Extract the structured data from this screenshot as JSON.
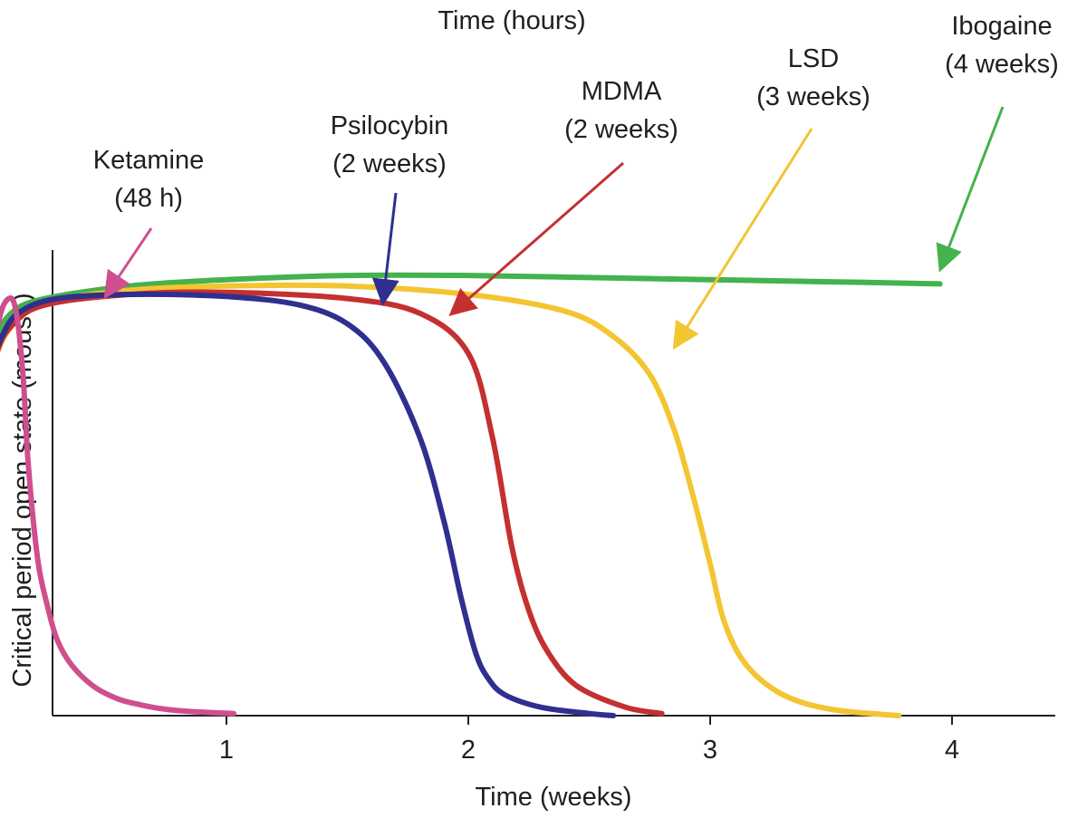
{
  "chart_data": {
    "type": "line",
    "title": "",
    "top_axis_label": "Time (hours)",
    "xlabel": "Time (weeks)",
    "ylabel": "Critical period open state (mouse)",
    "xlim": [
      -0.7,
      4.4
    ],
    "ylim": [
      0,
      1.0
    ],
    "x_ticks": [
      1,
      2,
      3,
      4
    ],
    "x_tick_labels": [
      "1",
      "2",
      "3",
      "4"
    ],
    "grid": false,
    "legend": "none",
    "series": [
      {
        "name": "Ketamine",
        "note": "(48 h)",
        "color": "#cf4f8e",
        "x": [
          -0.05,
          -0.02,
          0.02,
          0.06,
          0.1,
          0.13,
          0.16,
          0.18,
          0.22,
          0.26,
          0.3,
          0.36,
          0.45,
          0.55,
          0.65,
          0.75,
          0.85,
          0.95,
          1.03
        ],
        "y": [
          0.0,
          0.4,
          0.78,
          0.94,
          0.99,
          0.96,
          0.8,
          0.6,
          0.37,
          0.26,
          0.18,
          0.12,
          0.07,
          0.04,
          0.025,
          0.015,
          0.01,
          0.007,
          0.005
        ]
      },
      {
        "name": "Psilocybin",
        "note": "(2 weeks)",
        "color": "#2e2f8f",
        "x": [
          -0.03,
          -0.01,
          0.03,
          0.08,
          0.15,
          0.3,
          0.6,
          1.0,
          1.3,
          1.5,
          1.65,
          1.8,
          1.9,
          1.97,
          2.03,
          2.08,
          2.15,
          2.3,
          2.5,
          2.6
        ],
        "y": [
          0.0,
          0.6,
          0.82,
          0.91,
          0.96,
          0.99,
          1.0,
          0.995,
          0.975,
          0.93,
          0.84,
          0.66,
          0.46,
          0.28,
          0.15,
          0.09,
          0.05,
          0.02,
          0.005,
          0.0
        ]
      },
      {
        "name": "MDMA",
        "note": "(2 weeks)",
        "color": "#c43030",
        "x": [
          0.0,
          0.05,
          0.12,
          0.25,
          0.6,
          1.0,
          1.5,
          1.8,
          2.0,
          2.1,
          2.18,
          2.25,
          2.33,
          2.45,
          2.65,
          2.8
        ],
        "y": [
          0.7,
          0.86,
          0.93,
          0.975,
          1.0,
          1.005,
          0.99,
          0.955,
          0.86,
          0.66,
          0.4,
          0.25,
          0.15,
          0.07,
          0.02,
          0.005
        ]
      },
      {
        "name": "LSD",
        "note": "(3 weeks)",
        "color": "#f2c531",
        "x": [
          0.0,
          0.05,
          0.12,
          0.25,
          0.6,
          1.0,
          1.5,
          2.0,
          2.4,
          2.6,
          2.75,
          2.85,
          2.93,
          3.0,
          3.06,
          3.15,
          3.3,
          3.5,
          3.78
        ],
        "y": [
          0.76,
          0.86,
          0.93,
          0.98,
          1.01,
          1.02,
          1.02,
          1.0,
          0.96,
          0.9,
          0.81,
          0.68,
          0.52,
          0.36,
          0.22,
          0.12,
          0.05,
          0.015,
          0.0
        ]
      },
      {
        "name": "Ibogaine",
        "note": "(4 weeks)",
        "color": "#44b24d",
        "x": [
          0.0,
          0.05,
          0.12,
          0.25,
          0.6,
          1.0,
          1.5,
          2.0,
          2.5,
          3.0,
          3.5,
          3.95
        ],
        "y": [
          0.78,
          0.9,
          0.96,
          0.99,
          1.02,
          1.035,
          1.045,
          1.045,
          1.04,
          1.035,
          1.03,
          1.025
        ]
      }
    ],
    "annotations": [
      {
        "series": "Ketamine",
        "name_text": "Ketamine",
        "sub_text": "(48 h)",
        "color": "#cf4f8e"
      },
      {
        "series": "Psilocybin",
        "name_text": "Psilocybin",
        "sub_text": "(2 weeks)",
        "color": "#2e2f8f"
      },
      {
        "series": "MDMA",
        "name_text": "MDMA",
        "sub_text": "(2 weeks)",
        "color": "#c43030"
      },
      {
        "series": "LSD",
        "name_text": "LSD",
        "sub_text": "(3 weeks)",
        "color": "#f2c531"
      },
      {
        "series": "Ibogaine",
        "name_text": "Ibogaine",
        "sub_text": "(4 weeks)",
        "color": "#44b24d"
      }
    ]
  }
}
